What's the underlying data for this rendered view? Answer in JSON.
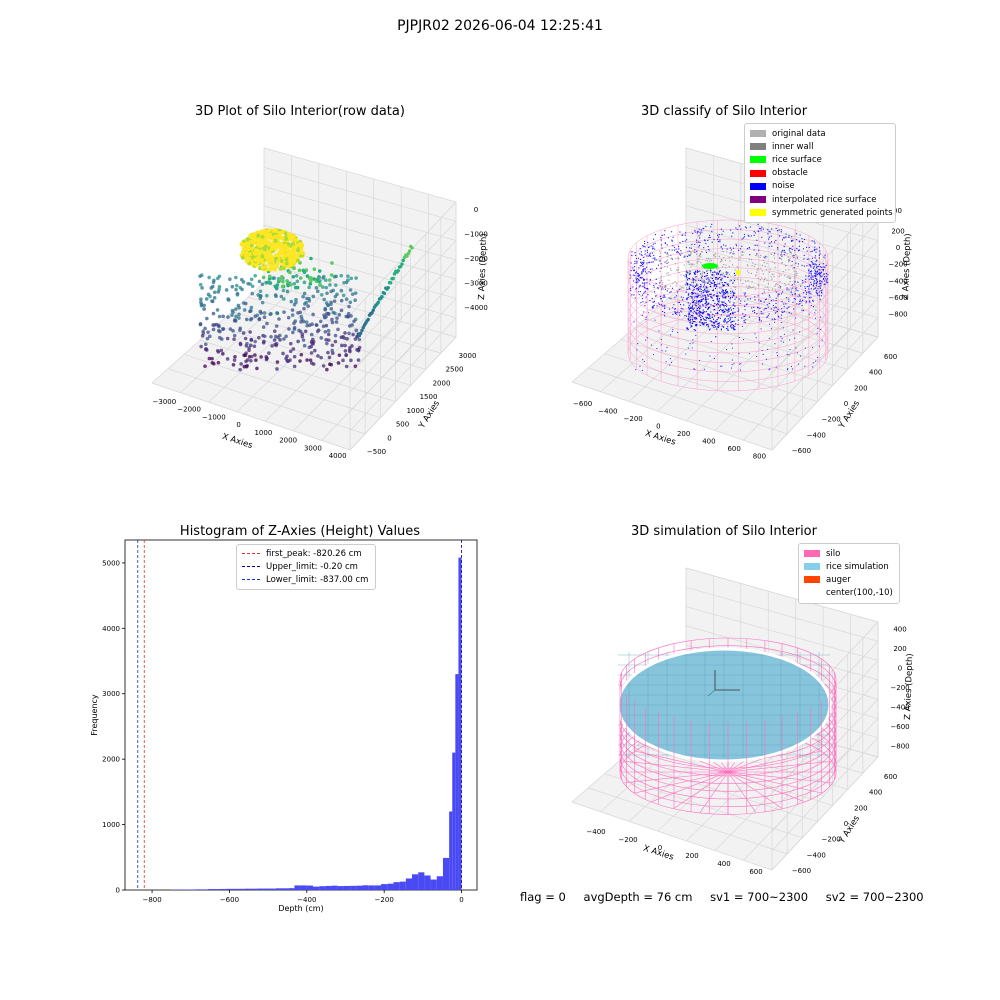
{
  "suptitle": "PJPJR02 2026-06-04 12:25:41",
  "chart_data": [
    {
      "type": "scatter",
      "title": "3D Plot of Silo Interior(row data)",
      "xlabel": "X Axies",
      "ylabel": "Y Axies",
      "zlabel": "Z Axies (Depth)",
      "x_ticks": [
        "−3000",
        "−2000",
        "−1000",
        "0",
        "1000",
        "2000",
        "3000",
        "4000"
      ],
      "y_ticks": [
        "−500",
        "0",
        "500",
        "1000",
        "1500",
        "2000",
        "2500",
        "3000"
      ],
      "z_ticks": [
        "−4000",
        "−3000",
        "−2000",
        "−1000",
        "0"
      ],
      "xlim": [
        -3300,
        4300
      ],
      "ylim": [
        -600,
        3200
      ],
      "zlim": [
        -4400,
        0
      ],
      "colormap": "viridis"
    },
    {
      "type": "scatter",
      "title": "3D classify of Silo Interior",
      "xlabel": "X Axies",
      "ylabel": "Y Axies",
      "zlabel": "Z Axies (Depth)",
      "x_ticks": [
        "−600",
        "−400",
        "−200",
        "0",
        "200",
        "400",
        "600",
        "800"
      ],
      "y_ticks": [
        "−600",
        "−400",
        "−200",
        "0",
        "200",
        "400",
        "600"
      ],
      "z_ticks": [
        "−800",
        "−600",
        "−400",
        "−200",
        "0",
        "200"
      ],
      "legend": [
        {
          "label": "original data",
          "color": "#b0b0b0"
        },
        {
          "label": "inner wall",
          "color": "#808080"
        },
        {
          "label": "rice surface",
          "color": "#00ff00"
        },
        {
          "label": "obstacle",
          "color": "#ff0000"
        },
        {
          "label": "noise",
          "color": "#0000ff"
        },
        {
          "label": "interpolated rice surface",
          "color": "#800080"
        },
        {
          "label": "symmetric generated points",
          "color": "#ffff00"
        }
      ],
      "legend_position": "upper-right",
      "z_extra_tick": "00"
    },
    {
      "type": "bar",
      "title": "Histogram of Z-Axies (Height) Values",
      "xlabel": "Depth (cm)",
      "ylabel": "Frequency",
      "xlim": [
        -870,
        40
      ],
      "ylim": [
        0,
        5350
      ],
      "x_ticks": [
        -800,
        -600,
        -400,
        -200,
        0
      ],
      "x_tick_labels": [
        "−800",
        "−600",
        "−400",
        "−200",
        "0"
      ],
      "y_ticks": [
        0,
        1000,
        2000,
        3000,
        4000,
        5000
      ],
      "bar_color": "#4a4af5",
      "bin_width": 16,
      "bins": [
        {
          "x0": -752,
          "count": 6
        },
        {
          "x0": -736,
          "count": 6
        },
        {
          "x0": -720,
          "count": 8
        },
        {
          "x0": -704,
          "count": 8
        },
        {
          "x0": -688,
          "count": 10
        },
        {
          "x0": -672,
          "count": 10
        },
        {
          "x0": -656,
          "count": 14
        },
        {
          "x0": -640,
          "count": 14
        },
        {
          "x0": -624,
          "count": 16
        },
        {
          "x0": -608,
          "count": 18
        },
        {
          "x0": -592,
          "count": 18
        },
        {
          "x0": -576,
          "count": 18
        },
        {
          "x0": -560,
          "count": 20
        },
        {
          "x0": -544,
          "count": 20
        },
        {
          "x0": -528,
          "count": 22
        },
        {
          "x0": -512,
          "count": 22
        },
        {
          "x0": -496,
          "count": 22
        },
        {
          "x0": -480,
          "count": 26
        },
        {
          "x0": -464,
          "count": 26
        },
        {
          "x0": -448,
          "count": 28
        },
        {
          "x0": -432,
          "count": 70
        },
        {
          "x0": -416,
          "count": 70
        },
        {
          "x0": -400,
          "count": 68
        },
        {
          "x0": -384,
          "count": 52
        },
        {
          "x0": -368,
          "count": 58
        },
        {
          "x0": -352,
          "count": 62
        },
        {
          "x0": -336,
          "count": 66
        },
        {
          "x0": -320,
          "count": 60
        },
        {
          "x0": -304,
          "count": 62
        },
        {
          "x0": -288,
          "count": 64
        },
        {
          "x0": -272,
          "count": 66
        },
        {
          "x0": -256,
          "count": 72
        },
        {
          "x0": -240,
          "count": 70
        },
        {
          "x0": -224,
          "count": 70
        },
        {
          "x0": -208,
          "count": 90
        },
        {
          "x0": -192,
          "count": 96
        },
        {
          "x0": -176,
          "count": 120
        },
        {
          "x0": -160,
          "count": 128
        },
        {
          "x0": -144,
          "count": 176
        },
        {
          "x0": -128,
          "count": 240
        },
        {
          "x0": -112,
          "count": 270
        },
        {
          "x0": -96,
          "count": 222
        },
        {
          "x0": -80,
          "count": 160
        },
        {
          "x0": -64,
          "count": 210
        },
        {
          "x0": -48,
          "count": 490
        },
        {
          "x0": -32,
          "count": 1200
        },
        {
          "x0": -24,
          "count": 2100
        },
        {
          "x0": -16,
          "count": 3300
        },
        {
          "x0": -8,
          "count": 5080
        }
      ],
      "vlines": [
        {
          "label": "first_peak: -820.26 cm",
          "x": -820.26,
          "color": "#e03030"
        },
        {
          "label": "Upper_limit: -0.20 cm",
          "x": -0.2,
          "color": "#000080"
        },
        {
          "label": "Lower_limit: -837.00 cm",
          "x": -837.0,
          "color": "#1030d0"
        }
      ]
    },
    {
      "type": "scatter",
      "title": "3D simulation of Silo Interior",
      "xlabel": "X Axies",
      "ylabel": "Y Axies",
      "zlabel": "Z Axies (Depth)",
      "x_ticks": [
        "−400",
        "−200",
        "0",
        "200",
        "400",
        "600"
      ],
      "y_ticks": [
        "−600",
        "−400",
        "−200",
        "0",
        "200",
        "400",
        "600"
      ],
      "z_ticks": [
        "−800",
        "−600",
        "−400",
        "−200",
        "0",
        "200",
        "400"
      ],
      "legend": [
        {
          "label": "silo",
          "color": "#ff69b4"
        },
        {
          "label": "rice simulation",
          "color": "#87ceeb"
        },
        {
          "label": "auger",
          "color": "#ff4500"
        },
        {
          "label": "center(100,-10)",
          "color": ""
        }
      ],
      "legend_position": "upper-right"
    }
  ],
  "footer": {
    "flag": "flag = 0",
    "avg_depth": "avgDepth = 76 cm",
    "sv1": "sv1 = 700~2300",
    "sv2": "sv2 = 700~2300"
  }
}
